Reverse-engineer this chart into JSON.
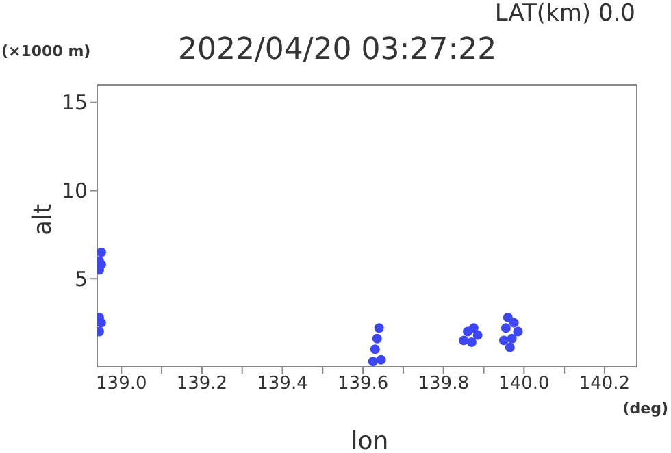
{
  "chart_data": {
    "type": "scatter",
    "title": "2022/04/20 03:27:22",
    "xlabel": "lon",
    "ylabel": "alt",
    "annotations": [
      "LAT(km) 0.0",
      "(×1000 m)",
      "(deg)"
    ],
    "x": [
      138.945,
      138.945,
      138.95,
      138.95,
      138.945,
      138.95,
      138.945,
      139.625,
      139.63,
      139.635,
      139.64,
      139.645,
      139.85,
      139.86,
      139.875,
      139.885,
      139.87,
      139.95,
      139.955,
      139.96,
      139.975,
      139.985,
      139.97,
      139.965
    ],
    "series": [
      {
        "color": "#3c46f5",
        "values": [
          5.5,
          6.0,
          6.5,
          5.8,
          2.0,
          2.5,
          2.8,
          0.3,
          1.0,
          1.6,
          2.2,
          0.4,
          1.5,
          2.0,
          2.2,
          1.8,
          1.4,
          1.5,
          2.2,
          2.8,
          2.5,
          2.0,
          1.6,
          1.1
        ]
      }
    ],
    "xlim": [
      138.94,
      140.28
    ],
    "ylim": [
      0,
      16
    ],
    "xticks": [
      {
        "value": 139.0,
        "label": "139.0"
      },
      {
        "value": 139.1,
        "label": null
      },
      {
        "value": 139.2,
        "label": "139.2"
      },
      {
        "value": 139.3,
        "label": null
      },
      {
        "value": 139.4,
        "label": "139.4"
      },
      {
        "value": 139.5,
        "label": null
      },
      {
        "value": 139.6,
        "label": "139.6"
      },
      {
        "value": 139.7,
        "label": null
      },
      {
        "value": 139.8,
        "label": "139.8"
      },
      {
        "value": 139.9,
        "label": null
      },
      {
        "value": 140.0,
        "label": "140.0"
      },
      {
        "value": 140.1,
        "label": null
      },
      {
        "value": 140.2,
        "label": "140.2"
      }
    ],
    "yticks": [
      5,
      10,
      15
    ],
    "marker": "circle",
    "grid": false,
    "legend": false
  }
}
